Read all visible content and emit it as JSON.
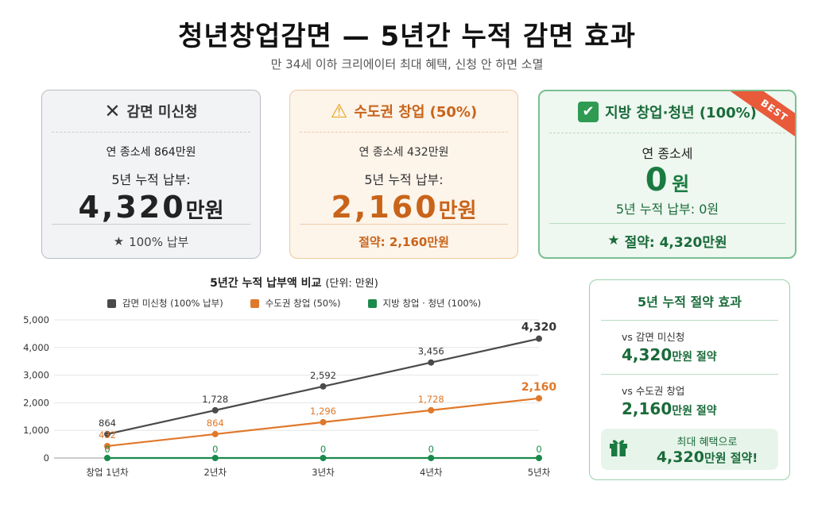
{
  "header": {
    "title": "청년창업감면 — 5년간 누적 감면 효과",
    "subtitle": "만 34세 이하 크리에이터 최대 혜택, 신청 안 하면 소멸"
  },
  "cards": [
    {
      "icon": "x-icon",
      "icon_glyph": "✕",
      "label": "감면 미신청",
      "annual": "연 종소세 864만원",
      "cum_label": "5년 누적 납부:",
      "cum_num": "4,320",
      "cum_unit": "만원",
      "foot_glyph": "★",
      "foot": "100% 납부"
    },
    {
      "icon": "warning-icon",
      "icon_glyph": "⚠",
      "label": "수도권 창업 (50%)",
      "annual": "연 종소세 432만원",
      "cum_label": "5년 누적 납부:",
      "cum_num": "2,160",
      "cum_unit": "만원",
      "foot": "절약: 2,160만원"
    },
    {
      "icon": "check-icon",
      "icon_glyph": "✔",
      "label": "지방 창업·청년 (100%)",
      "badge": "BEST",
      "annual": "연 종소세",
      "zero_num": "0",
      "zero_unit": "원",
      "cum": "5년 누적 납부: 0원",
      "foot_glyph": "★",
      "foot": "절약: 4,320만원"
    }
  ],
  "savings": {
    "title": "5년 누적 절약 효과",
    "items": [
      {
        "vs": "vs 감면 미신청",
        "amount": "4,320",
        "suffix": "만원 절약"
      },
      {
        "vs": "vs 수도권 창업",
        "amount": "2,160",
        "suffix": "만원 절약"
      }
    ],
    "max_label": "최대 혜택으로",
    "max_amount": "4,320",
    "max_suffix": "만원 절약!",
    "gift_icon": "gift-icon"
  },
  "chart_data": {
    "type": "line",
    "title": "5년간 누적 납부액 비교",
    "unit_label": "(단위: 만원)",
    "categories": [
      "창업 1년차",
      "2년차",
      "3년차",
      "4년차",
      "5년차"
    ],
    "ylim": [
      0,
      5000
    ],
    "yticks": [
      "0",
      "1,000",
      "2,000",
      "3,000",
      "4,000",
      "5,000"
    ],
    "ytick_values": [
      0,
      1000,
      2000,
      3000,
      4000,
      5000
    ],
    "grid": true,
    "legend_position": "top",
    "series": [
      {
        "name": "감면 미신청 (100% 납부)",
        "color": "#4a4a4a",
        "values": [
          864,
          1728,
          2592,
          3456,
          4320
        ],
        "labels": [
          "864",
          "1,728",
          "2,592",
          "3,456",
          "4,320"
        ]
      },
      {
        "name": "수도권 창업 (50%)",
        "color": "#e0782a",
        "values": [
          432,
          864,
          1296,
          1728,
          2160
        ],
        "labels": [
          "432",
          "864",
          "1,296",
          "1,728",
          "2,160"
        ]
      },
      {
        "name": "지방 창업 · 청년 (100%)",
        "color": "#1a8a4a",
        "values": [
          0,
          0,
          0,
          0,
          0
        ],
        "labels": [
          "0",
          "0",
          "0",
          "0",
          "0"
        ]
      }
    ]
  }
}
